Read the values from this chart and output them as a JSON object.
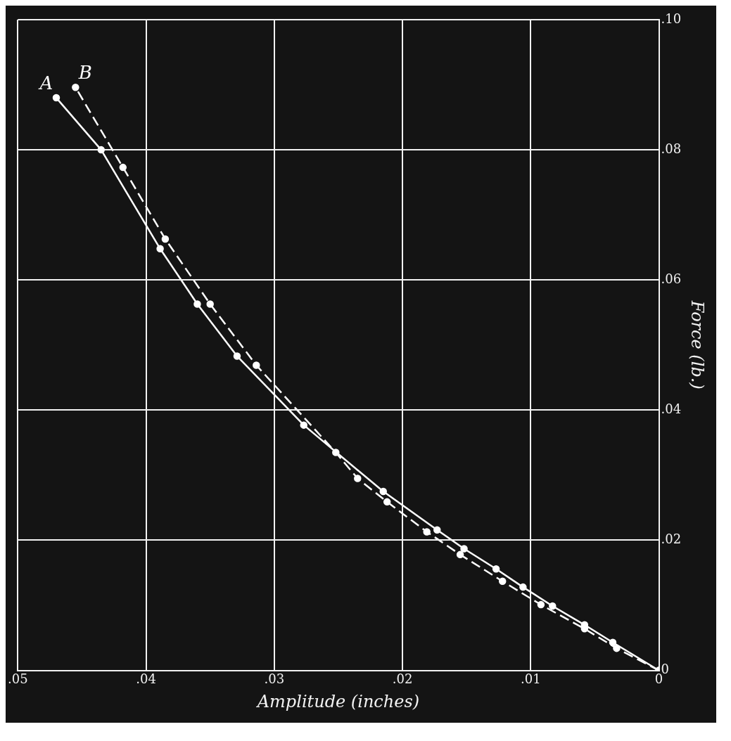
{
  "chart_data": {
    "type": "line",
    "xlabel": "Amplitude (inches)",
    "ylabel": "Force (lb.)",
    "xlim": [
      0.05,
      0
    ],
    "xticks": [
      {
        "value": 0.05,
        "label": ".05"
      },
      {
        "value": 0.04,
        "label": ".04"
      },
      {
        "value": 0.03,
        "label": ".03"
      },
      {
        "value": 0.02,
        "label": ".02"
      },
      {
        "value": 0.01,
        "label": ".01"
      },
      0
    ],
    "ylim": [
      0,
      0.1
    ],
    "yticks": [
      0,
      {
        "value": 0.02,
        "label": ".02"
      },
      {
        "value": 0.04,
        "label": ".04"
      },
      {
        "value": 0.06,
        "label": ".06"
      },
      {
        "value": 0.08,
        "label": ".08"
      },
      {
        "value": 0.1,
        "label": ".10"
      }
    ],
    "grid": true,
    "legend": false,
    "marker": "circle",
    "series": [
      {
        "name": "A",
        "color": "#ffffff",
        "line_style": "solid",
        "x": [
          0,
          0.0036,
          0.0058,
          0.0083,
          0.0106,
          0.0127,
          0.0152,
          0.0173,
          0.0215,
          0.0277,
          0.0329,
          0.036,
          0.0389,
          0.0435,
          0.047
        ],
        "values": [
          0,
          0.0043,
          0.007,
          0.0099,
          0.0128,
          0.0156,
          0.0187,
          0.0216,
          0.0275,
          0.0377,
          0.0483,
          0.0563,
          0.0648,
          0.08,
          0.088
        ]
      },
      {
        "name": "B",
        "color": "#ffffff",
        "line_style": "dashed",
        "x": [
          0,
          0.0033,
          0.0058,
          0.0092,
          0.0122,
          0.0155,
          0.0181,
          0.0212,
          0.0235,
          0.0252,
          0.0314,
          0.035,
          0.0385,
          0.0418,
          0.0455
        ],
        "values": [
          0,
          0.0034,
          0.0064,
          0.0101,
          0.0137,
          0.0178,
          0.0213,
          0.0259,
          0.0295,
          0.0335,
          0.0469,
          0.0563,
          0.0663,
          0.0773,
          0.0896
        ]
      }
    ]
  }
}
